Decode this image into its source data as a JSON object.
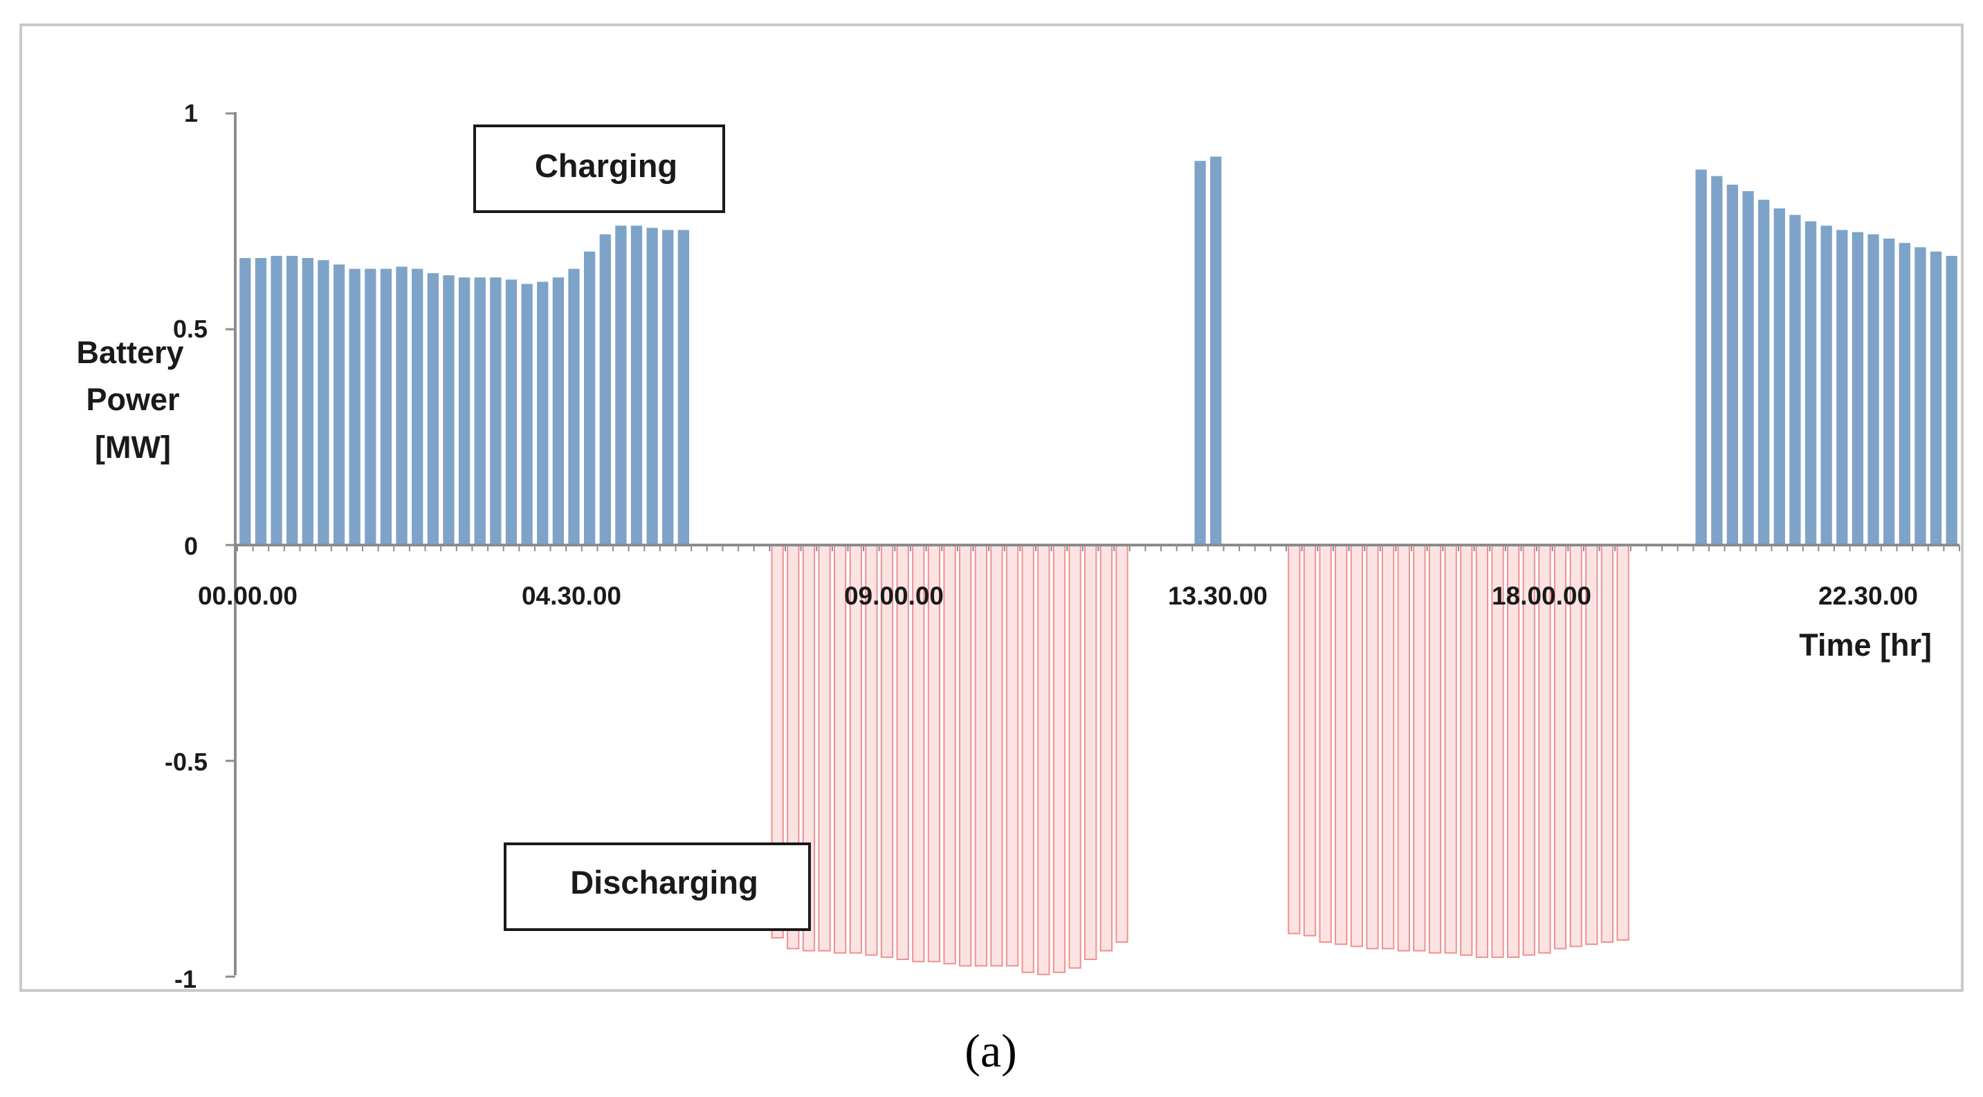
{
  "chart_data": {
    "type": "bar",
    "xlabel": "Time [hr]",
    "ylabel_lines": [
      "Battery",
      "Power",
      "[MW]"
    ],
    "ylim": [
      -1,
      1
    ],
    "y_ticks": [
      {
        "value": 1,
        "label": "1"
      },
      {
        "value": 0.5,
        "label": "0.5"
      },
      {
        "value": 0,
        "label": "0"
      },
      {
        "value": -0.5,
        "label": "-0.5"
      },
      {
        "value": -1,
        "label": "-1"
      }
    ],
    "x_tick_labels": [
      {
        "index": 0,
        "label": "00.00.00"
      },
      {
        "index": 9,
        "label": "04.30.00"
      },
      {
        "index": 18,
        "label": "09.00.00"
      },
      {
        "index": 27,
        "label": "13.30.00"
      },
      {
        "index": 36,
        "label": "18.00.00"
      },
      {
        "index": 45,
        "label": "22.30.00"
      }
    ],
    "interval_hours": 0.5,
    "values": [
      0.665,
      0.665,
      0.67,
      0.67,
      0.665,
      0.66,
      0.65,
      0.64,
      0.64,
      0.64,
      0.645,
      0.64,
      0.63,
      0.625,
      0.62,
      0.62,
      0.62,
      0.615,
      0.605,
      0.61,
      0.62,
      0.64,
      0.68,
      0.72,
      0.74,
      0.74,
      0.735,
      0.73,
      0.73,
      0,
      0,
      0,
      0,
      0,
      -0.91,
      -0.935,
      -0.94,
      -0.94,
      -0.945,
      -0.945,
      -0.95,
      -0.955,
      -0.96,
      -0.965,
      -0.965,
      -0.97,
      -0.975,
      -0.975,
      -0.975,
      -0.975,
      -0.99,
      -0.995,
      -0.99,
      -0.98,
      -0.96,
      -0.94,
      -0.92,
      0,
      0,
      0,
      0,
      0.89,
      0.9,
      0,
      0,
      0,
      0,
      -0.9,
      -0.905,
      -0.92,
      -0.925,
      -0.93,
      -0.935,
      -0.935,
      -0.94,
      -0.94,
      -0.945,
      -0.945,
      -0.95,
      -0.955,
      -0.955,
      -0.955,
      -0.95,
      -0.945,
      -0.935,
      -0.93,
      -0.925,
      -0.92,
      -0.915,
      0,
      0,
      0,
      0,
      0.87,
      0.855,
      0.835,
      0.82,
      0.8,
      0.78,
      0.765,
      0.75,
      0.74,
      0.73,
      0.725,
      0.72,
      0.71,
      0.7,
      0.69,
      0.68,
      0.67
    ],
    "series_colors": {
      "charging": "#7ea3c8",
      "discharging": "#f09090"
    },
    "annotations": [
      "Charging",
      "Discharging"
    ]
  },
  "caption": "(a)"
}
